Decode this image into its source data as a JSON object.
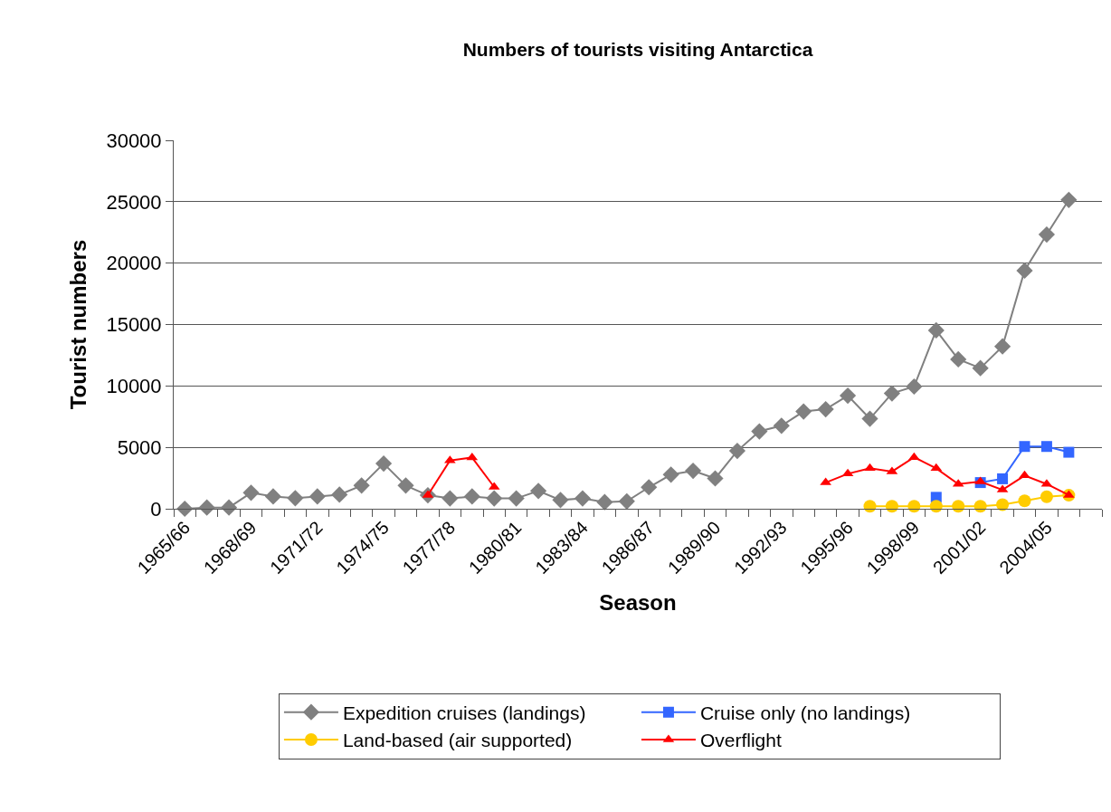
{
  "chart_data": {
    "type": "line",
    "title": "Numbers of tourists visiting Antarctica",
    "xlabel": "Season",
    "ylabel": "Tourist numbers",
    "categories": [
      "1965/66",
      null,
      null,
      "1968/69",
      null,
      null,
      "1971/72",
      null,
      null,
      "1974/75",
      null,
      null,
      "1977/78",
      null,
      null,
      "1980/81",
      null,
      null,
      "1983/84",
      null,
      null,
      "1986/87",
      null,
      null,
      "1989/90",
      null,
      null,
      "1992/93",
      null,
      null,
      "1995/96",
      null,
      null,
      "1998/99",
      null,
      null,
      "2001/02",
      null,
      null,
      "2004/05",
      null,
      null
    ],
    "ylim": [
      0,
      30000
    ],
    "yticks": [
      0,
      5000,
      10000,
      15000,
      20000,
      25000,
      30000
    ],
    "grid": "y",
    "legend": "bottom",
    "line_style": "solid",
    "series": [
      {
        "name": "Expedition cruises (landings)",
        "color": "#808080",
        "marker": "diamond",
        "values": [
          0,
          100,
          100,
          1300,
          1000,
          860,
          1000,
          1150,
          1890,
          3680,
          1890,
          1100,
          840,
          1000,
          840,
          840,
          1450,
          710,
          840,
          540,
          600,
          1750,
          2780,
          3090,
          2470,
          4710,
          6300,
          6760,
          7920,
          8100,
          9210,
          7330,
          9390,
          9950,
          14530,
          12170,
          11450,
          13220,
          19390,
          22330,
          25150,
          null
        ]
      },
      {
        "name": "Cruise only (no landings)",
        "color": "#3366ff",
        "marker": "square",
        "values": [
          null,
          null,
          null,
          null,
          null,
          null,
          null,
          null,
          null,
          null,
          null,
          null,
          null,
          null,
          null,
          null,
          null,
          null,
          null,
          null,
          null,
          null,
          null,
          null,
          null,
          null,
          null,
          null,
          null,
          null,
          null,
          null,
          null,
          null,
          930,
          null,
          2130,
          2440,
          5070,
          5070,
          4600,
          null
        ]
      },
      {
        "name": "Land-based (air supported)",
        "color": "#ffcc00",
        "marker": "circle",
        "values": [
          null,
          null,
          null,
          null,
          null,
          null,
          null,
          null,
          null,
          null,
          null,
          null,
          null,
          null,
          null,
          null,
          null,
          null,
          null,
          null,
          null,
          null,
          null,
          null,
          null,
          null,
          null,
          null,
          null,
          null,
          null,
          200,
          200,
          200,
          200,
          200,
          200,
          330,
          640,
          980,
          1100,
          null
        ]
      },
      {
        "name": "Overflight",
        "color": "#ff0000",
        "marker": "triangle",
        "values": [
          null,
          null,
          null,
          null,
          null,
          null,
          null,
          null,
          null,
          null,
          null,
          1100,
          3930,
          4170,
          1770,
          null,
          null,
          null,
          null,
          null,
          null,
          null,
          null,
          null,
          null,
          null,
          null,
          null,
          null,
          2130,
          2850,
          3290,
          3030,
          4190,
          3290,
          2010,
          2210,
          1540,
          2700,
          2010,
          1110,
          null
        ]
      }
    ]
  }
}
